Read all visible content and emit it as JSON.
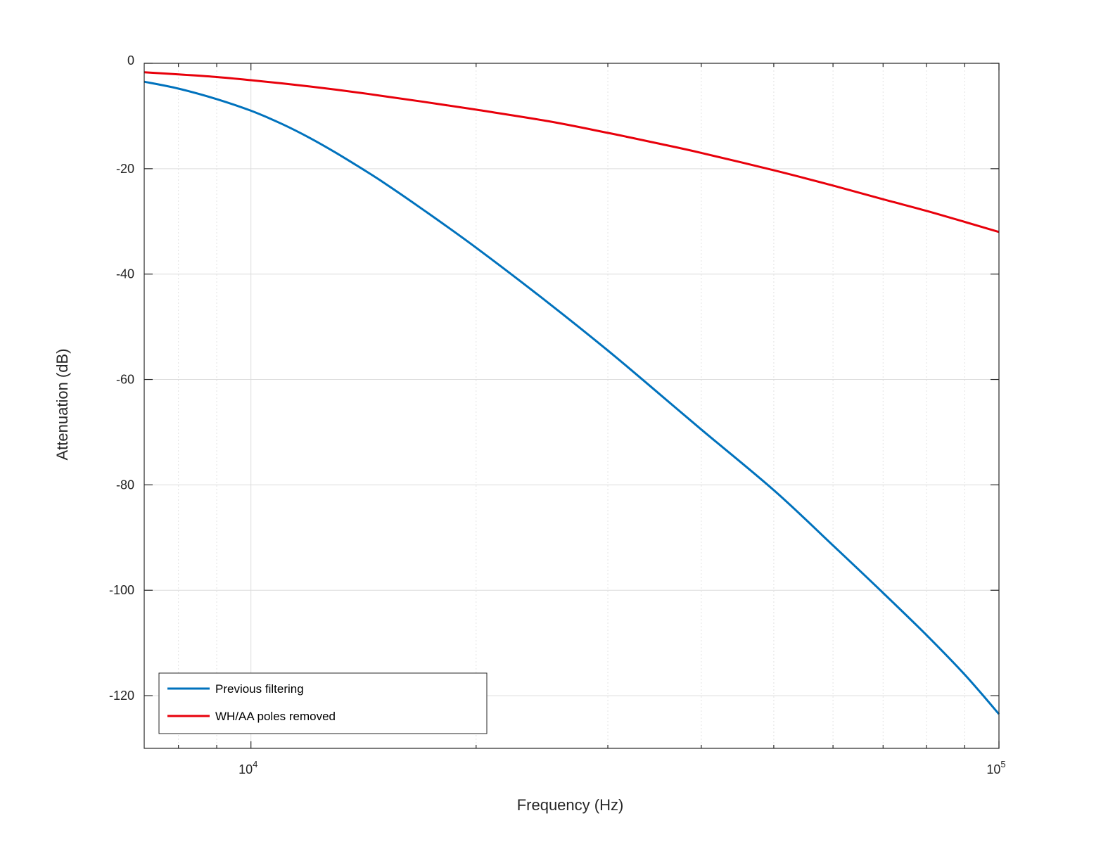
{
  "chart_data": {
    "type": "line",
    "title": "",
    "xlabel": "Frequency (Hz)",
    "ylabel": "Attenuation (dB)",
    "xscale": "log",
    "xlim": [
      7200,
      100000
    ],
    "ylim": [
      -130,
      0
    ],
    "xticks": [
      {
        "value": 10000,
        "base": "10",
        "exp": "4"
      },
      {
        "value": 100000,
        "base": "10",
        "exp": "5"
      }
    ],
    "yticks": [
      0,
      -20,
      -40,
      -60,
      -80,
      -100,
      -120
    ],
    "ytick_labels": [
      "0",
      "-20",
      "-40",
      "-60",
      "-80",
      "-100",
      "-120"
    ],
    "grid": true,
    "legend_position": "bottom-left",
    "series": [
      {
        "name": "Previous filtering",
        "color": "#0072BD",
        "x": [
          7200,
          8000,
          9000,
          10000,
          11000,
          12000,
          13000,
          14000,
          15000,
          17000,
          20000,
          25000,
          30000,
          35000,
          40000,
          50000,
          60000,
          70000,
          80000,
          90000,
          100000
        ],
        "y": [
          -3.5,
          -4.8,
          -6.8,
          -9.0,
          -11.5,
          -14.2,
          -17.0,
          -19.8,
          -22.5,
          -27.8,
          -35.0,
          -45.5,
          -54.5,
          -62.5,
          -69.5,
          -81.0,
          -91.5,
          -100.5,
          -108.5,
          -116.0,
          -123.5
        ]
      },
      {
        "name": "WH/AA poles removed",
        "color": "#E8000B",
        "x": [
          7200,
          8000,
          9000,
          10000,
          11000,
          12000,
          13000,
          14000,
          15000,
          17000,
          20000,
          25000,
          30000,
          35000,
          40000,
          50000,
          60000,
          70000,
          80000,
          90000,
          100000
        ],
        "y": [
          -1.7,
          -2.1,
          -2.6,
          -3.2,
          -3.8,
          -4.4,
          -5.0,
          -5.6,
          -6.2,
          -7.3,
          -8.8,
          -11.0,
          -13.2,
          -15.2,
          -17.0,
          -20.3,
          -23.2,
          -25.8,
          -28.0,
          -30.1,
          -32.0
        ]
      }
    ]
  }
}
